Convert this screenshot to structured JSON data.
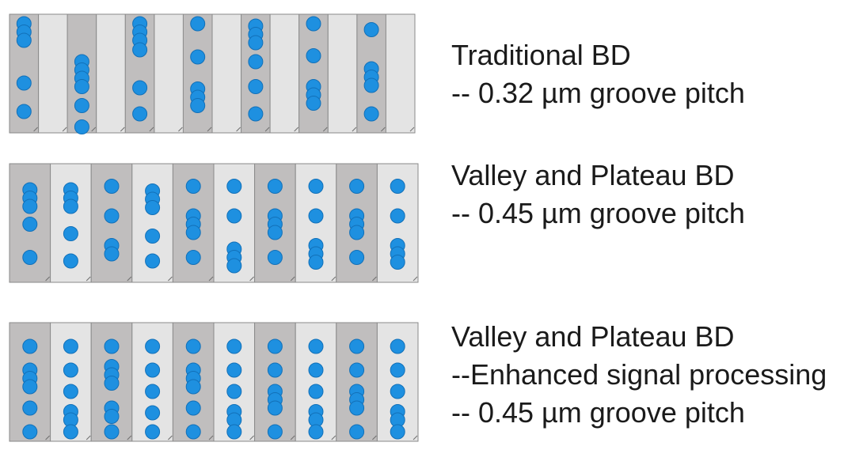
{
  "diagrams": [
    {
      "lines": [
        "Traditional BD",
        "-- 0.32 µm groove pitch"
      ],
      "stripe_count": 14,
      "dots": [
        [
          0.08,
          0.15,
          0.22,
          0.58,
          0.82
        ],
        [],
        [
          0.4,
          0.47,
          0.54,
          0.61,
          0.77,
          0.95
        ],
        [],
        [
          0.08,
          0.15,
          0.22,
          0.3,
          0.62,
          0.84
        ],
        [],
        [
          0.08,
          0.36,
          0.63,
          0.7,
          0.77
        ],
        [],
        [
          0.1,
          0.17,
          0.24,
          0.4,
          0.61,
          0.84
        ],
        [],
        [
          0.08,
          0.35,
          0.61,
          0.68,
          0.75
        ],
        [],
        [
          0.13,
          0.46,
          0.53,
          0.6,
          0.84
        ],
        []
      ]
    },
    {
      "lines": [
        "Valley and Plateau BD",
        "-- 0.45 µm groove pitch"
      ],
      "stripe_count": 10,
      "dots": [
        [
          0.22,
          0.29,
          0.36,
          0.51,
          0.79
        ],
        [
          0.22,
          0.29,
          0.36,
          0.59,
          0.82
        ],
        [
          0.19,
          0.44,
          0.69,
          0.76
        ],
        [
          0.23,
          0.3,
          0.37,
          0.61,
          0.82
        ],
        [
          0.19,
          0.44,
          0.51,
          0.58,
          0.79
        ],
        [
          0.19,
          0.44,
          0.72,
          0.79,
          0.86
        ],
        [
          0.19,
          0.44,
          0.51,
          0.58,
          0.79
        ],
        [
          0.19,
          0.44,
          0.69,
          0.76,
          0.83
        ],
        [
          0.19,
          0.44,
          0.51,
          0.58,
          0.79
        ],
        [
          0.19,
          0.44,
          0.69,
          0.76,
          0.83
        ]
      ]
    },
    {
      "lines": [
        "Valley and Plateau BD",
        "--Enhanced signal processing",
        "-- 0.45 µm groove pitch"
      ],
      "stripe_count": 10,
      "dots": [
        [
          0.2,
          0.4,
          0.47,
          0.54,
          0.72,
          0.92
        ],
        [
          0.2,
          0.4,
          0.58,
          0.75,
          0.82,
          0.92
        ],
        [
          0.2,
          0.37,
          0.44,
          0.51,
          0.72,
          0.79,
          0.92
        ],
        [
          0.2,
          0.4,
          0.58,
          0.76,
          0.92
        ],
        [
          0.2,
          0.4,
          0.47,
          0.54,
          0.72,
          0.92
        ],
        [
          0.2,
          0.4,
          0.58,
          0.75,
          0.82,
          0.92
        ],
        [
          0.2,
          0.4,
          0.58,
          0.65,
          0.72,
          0.92
        ],
        [
          0.2,
          0.4,
          0.58,
          0.75,
          0.82,
          0.92
        ],
        [
          0.2,
          0.4,
          0.58,
          0.65,
          0.72,
          0.92
        ],
        [
          0.2,
          0.4,
          0.58,
          0.75,
          0.82,
          0.92
        ]
      ]
    }
  ],
  "colors": {
    "groove_dark": "#c0bebe",
    "groove_light": "#e4e4e4",
    "edge": "#8a8a8a",
    "dot_fill": "#1e90e0",
    "dot_stroke": "#1270b8",
    "text": "#1a1a1a"
  }
}
